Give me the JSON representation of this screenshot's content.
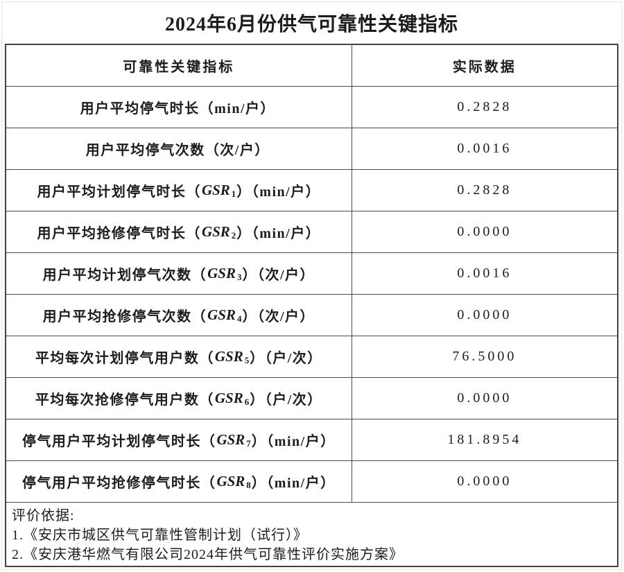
{
  "title": "2024年6月份供气可靠性关键指标",
  "columns": {
    "indicator": "可靠性关键指标",
    "actual": "实际数据"
  },
  "rows": [
    {
      "label_prefix": "用户平均停气时长（min/户）",
      "gsr": "",
      "gsr_sub": "",
      "label_suffix": "",
      "value": "0.2828"
    },
    {
      "label_prefix": "用户平均停气次数（次/户）",
      "gsr": "",
      "gsr_sub": "",
      "label_suffix": "",
      "value": "0.0016"
    },
    {
      "label_prefix": "用户平均计划停气时长（",
      "gsr": "GSR",
      "gsr_sub": "1",
      "label_suffix": "）（min/户）",
      "value": "0.2828"
    },
    {
      "label_prefix": "用户平均抢修停气时长（",
      "gsr": "GSR",
      "gsr_sub": "2",
      "label_suffix": "）（min/户）",
      "value": "0.0000"
    },
    {
      "label_prefix": "用户平均计划停气次数（",
      "gsr": "GSR",
      "gsr_sub": "3",
      "label_suffix": "）（次/户）",
      "value": "0.0016"
    },
    {
      "label_prefix": "用户平均抢修停气次数（",
      "gsr": "GSR",
      "gsr_sub": "4",
      "label_suffix": "）（次/户）",
      "value": "0.0000"
    },
    {
      "label_prefix": "平均每次计划停气用户数（",
      "gsr": "GSR",
      "gsr_sub": "5",
      "label_suffix": "）（户/次）",
      "value": "76.5000"
    },
    {
      "label_prefix": "平均每次抢修停气用户数（",
      "gsr": "GSR",
      "gsr_sub": "6",
      "label_suffix": "）（户/次）",
      "value": "0.0000"
    },
    {
      "label_prefix": "停气用户平均计划停气时长（",
      "gsr": "GSR",
      "gsr_sub": "7",
      "label_suffix": "）（min/户）",
      "value": "181.8954"
    },
    {
      "label_prefix": "停气用户平均抢修停气时长（",
      "gsr": "GSR",
      "gsr_sub": "8",
      "label_suffix": "）（min/户）",
      "value": "0.0000"
    }
  ],
  "footer": {
    "heading": "评价依据:",
    "lines": [
      "1.《安庆市城区供气可靠性管制计划（试行）》",
      "2.《安庆港华燃气有限公司2024年供气可靠性评价实施方案》"
    ]
  },
  "colors": {
    "text": "#1c1c1c",
    "table_border": "#424242",
    "inner_border": "#4a4a4a",
    "page_edge": "#e6e6e4",
    "background": "#ffffff"
  }
}
